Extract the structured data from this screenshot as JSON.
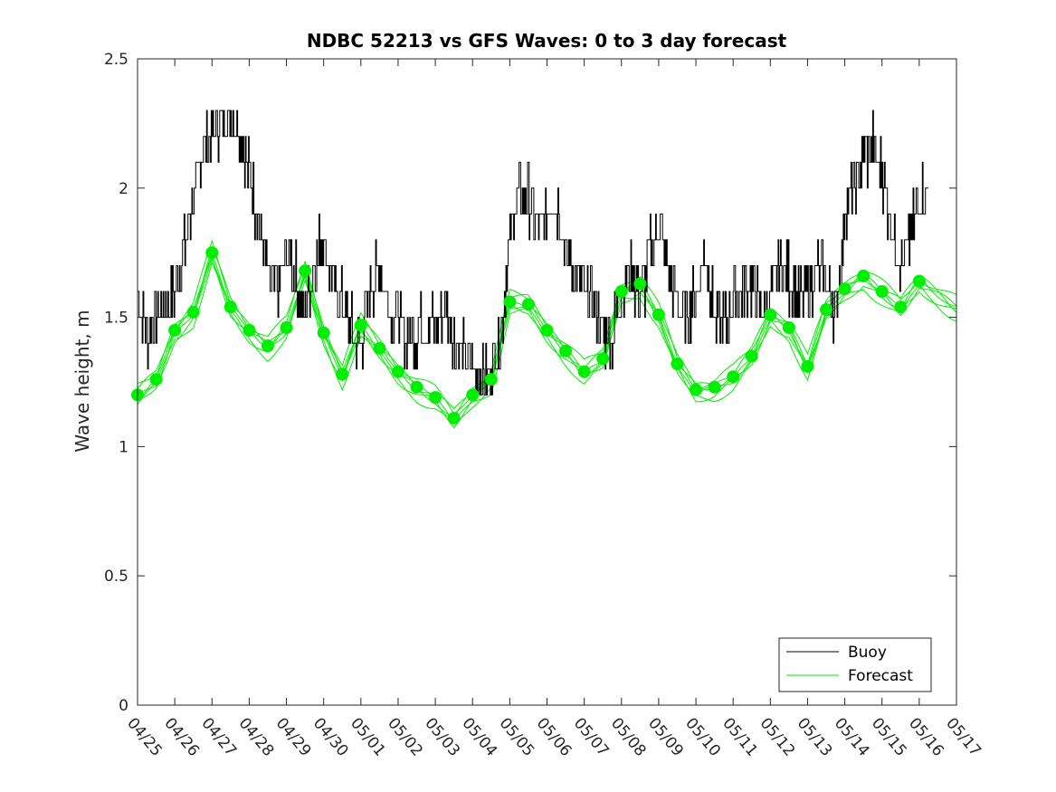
{
  "chart_data": {
    "type": "line",
    "title": "NDBC 52213 vs GFS Waves: 0 to 3 day forecast",
    "xlabel": "",
    "ylabel": "Wave height, m",
    "ylim": [
      0,
      2.5
    ],
    "yticks": [
      "0",
      "0.5",
      "1",
      "1.5",
      "2",
      "2.5"
    ],
    "xticks": [
      "04/25",
      "04/26",
      "04/27",
      "04/28",
      "04/29",
      "04/30",
      "05/01",
      "05/02",
      "05/03",
      "05/04",
      "05/05",
      "05/06",
      "05/07",
      "05/08",
      "05/09",
      "05/10",
      "05/11",
      "05/12",
      "05/13",
      "05/14",
      "05/15",
      "05/16",
      "05/17"
    ],
    "xrange_days": [
      0,
      22
    ],
    "grid": false,
    "legend_position": "bottom-right",
    "colors": {
      "buoy": "#000000",
      "forecast": "#00ee00"
    },
    "series": [
      {
        "name": "Buoy",
        "x": [
          0,
          0.25,
          0.5,
          0.75,
          1,
          1.25,
          1.5,
          1.75,
          2,
          2.25,
          2.5,
          2.75,
          3,
          3.25,
          3.5,
          3.75,
          4,
          4.25,
          4.5,
          4.75,
          5,
          5.25,
          5.5,
          5.75,
          6,
          6.25,
          6.5,
          6.75,
          7,
          7.25,
          7.5,
          7.75,
          8,
          8.25,
          8.5,
          8.75,
          9,
          9.25,
          9.5,
          9.75,
          10,
          10.25,
          10.5,
          10.75,
          11,
          11.25,
          11.5,
          11.75,
          12,
          12.25,
          12.5,
          12.75,
          13,
          13.25,
          13.5,
          13.75,
          14,
          14.25,
          14.5,
          14.75,
          15,
          15.25,
          15.5,
          15.75,
          16,
          16.25,
          16.5,
          16.75,
          17,
          17.25,
          17.5,
          17.75,
          18,
          18.25,
          18.5,
          18.75,
          19,
          19.25,
          19.5,
          19.75,
          20,
          20.25,
          20.5,
          20.75,
          21,
          21.25
        ],
        "values": [
          1.6,
          1.4,
          1.5,
          1.55,
          1.6,
          1.75,
          1.95,
          2.15,
          2.2,
          2.25,
          2.3,
          2.2,
          2.05,
          1.85,
          1.65,
          1.6,
          1.75,
          1.65,
          1.5,
          1.7,
          1.8,
          1.6,
          1.55,
          1.45,
          1.4,
          1.6,
          1.7,
          1.55,
          1.5,
          1.4,
          1.45,
          1.5,
          1.45,
          1.55,
          1.4,
          1.35,
          1.3,
          1.25,
          1.3,
          1.45,
          1.8,
          2.0,
          1.95,
          1.85,
          1.9,
          1.95,
          1.75,
          1.65,
          1.6,
          1.55,
          1.45,
          1.4,
          1.6,
          1.7,
          1.55,
          1.75,
          1.85,
          1.7,
          1.55,
          1.5,
          1.6,
          1.75,
          1.5,
          1.45,
          1.55,
          1.6,
          1.65,
          1.5,
          1.6,
          1.7,
          1.65,
          1.55,
          1.6,
          1.7,
          1.65,
          1.5,
          1.9,
          2.0,
          2.1,
          2.15,
          2.05,
          1.85,
          1.7,
          1.8,
          1.95,
          2.0
        ]
      },
      {
        "name": "Forecast",
        "x": [
          0,
          0.5,
          1,
          1.5,
          2,
          2.5,
          3,
          3.5,
          4,
          4.5,
          5,
          5.5,
          6,
          6.5,
          7,
          7.5,
          8,
          8.5,
          9,
          9.5,
          10,
          10.5,
          11,
          11.5,
          12,
          12.5,
          13,
          13.5,
          14,
          14.5,
          15,
          15.5,
          16,
          16.5,
          17,
          17.5,
          18,
          18.5,
          19,
          19.5,
          20,
          20.5,
          21
        ],
        "values": [
          1.2,
          1.26,
          1.45,
          1.52,
          1.75,
          1.54,
          1.45,
          1.39,
          1.46,
          1.68,
          1.44,
          1.28,
          1.47,
          1.38,
          1.29,
          1.23,
          1.19,
          1.11,
          1.2,
          1.26,
          1.56,
          1.55,
          1.45,
          1.37,
          1.29,
          1.34,
          1.6,
          1.63,
          1.51,
          1.32,
          1.22,
          1.23,
          1.27,
          1.35,
          1.51,
          1.46,
          1.31,
          1.53,
          1.61,
          1.66,
          1.6,
          1.54,
          1.64
        ]
      }
    ],
    "legend": {
      "buoy_label": "Buoy",
      "forecast_label": "Forecast"
    }
  }
}
